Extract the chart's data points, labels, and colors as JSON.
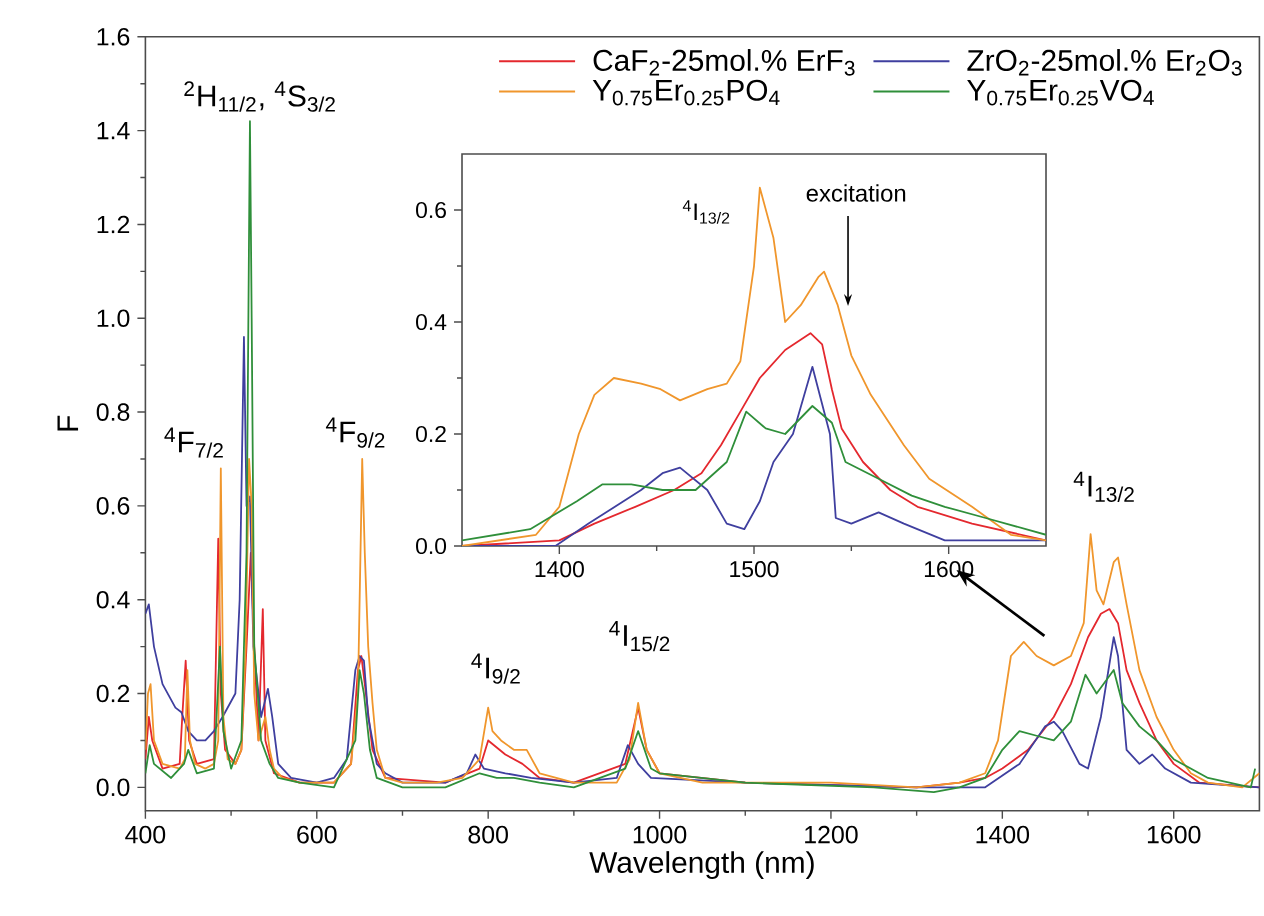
{
  "chart_data": [
    {
      "type": "line",
      "xlabel": "Wavelength (nm)",
      "ylabel": "F",
      "xlim": [
        400,
        1700
      ],
      "ylim": [
        -0.05,
        1.6
      ],
      "xticks": [
        400,
        600,
        800,
        1000,
        1200,
        1400,
        1600
      ],
      "yticks": [
        {
          "value": 0,
          "label": "0.0"
        },
        {
          "value": 0.2,
          "label": "0.2"
        },
        {
          "value": 0.4,
          "label": "0.4"
        },
        {
          "value": 0.6,
          "label": "0.6"
        },
        {
          "value": 0.8,
          "label": "0.8"
        },
        {
          "value": 1.0,
          "label": "1.0"
        },
        {
          "value": 1.2,
          "label": "1.2"
        },
        {
          "value": 1.4,
          "label": "1.4"
        },
        {
          "value": 1.6,
          "label": "1.6"
        }
      ],
      "legend": "top right",
      "annotations": [
        "$^{2}$H$_{11/2}$, $^{4}$S$_{3/2}$",
        "$^{4}$F$_{7/2}$",
        "$^{4}$F$_{9/2}$",
        "$^{4}$I$_{9/2}$",
        "$^{4}$I$_{15/2}$",
        "$^{4}$I$_{13/2}$"
      ],
      "series": [
        {
          "name": "CaF$_{2}$-25mol.% ErF$_{3}$",
          "color": "#e4282e",
          "x": [
            400,
            404,
            408,
            420,
            440,
            443,
            447,
            451,
            460,
            480,
            485,
            488,
            493,
            505,
            512,
            518,
            523,
            527,
            532,
            537,
            540,
            550,
            580,
            620,
            640,
            648,
            652,
            656,
            665,
            680,
            750,
            790,
            800,
            820,
            840,
            860,
            900,
            960,
            975,
            985,
            1000,
            1100,
            1300,
            1350,
            1380,
            1400,
            1430,
            1460,
            1480,
            1500,
            1515,
            1525,
            1535,
            1545,
            1560,
            1580,
            1600,
            1630,
            1700
          ],
          "values": [
            0.06,
            0.15,
            0.1,
            0.04,
            0.05,
            0.15,
            0.27,
            0.1,
            0.05,
            0.06,
            0.53,
            0.2,
            0.08,
            0.05,
            0.08,
            0.3,
            0.5,
            0.3,
            0.1,
            0.38,
            0.1,
            0.03,
            0.01,
            0.01,
            0.05,
            0.25,
            0.28,
            0.22,
            0.08,
            0.02,
            0.01,
            0.04,
            0.1,
            0.07,
            0.05,
            0.02,
            0.01,
            0.05,
            0.17,
            0.08,
            0.03,
            0.01,
            0.0,
            0.01,
            0.02,
            0.04,
            0.08,
            0.15,
            0.22,
            0.32,
            0.37,
            0.38,
            0.35,
            0.25,
            0.18,
            0.1,
            0.05,
            0.01,
            0.0
          ]
        },
        {
          "name": "ZrO$_{2}$-25mol.% Er$_{2}$O$_{3}$",
          "color": "#3f3f9f",
          "x": [
            400,
            404,
            410,
            420,
            435,
            442,
            450,
            460,
            470,
            480,
            490,
            505,
            510,
            515,
            518,
            522,
            526,
            535,
            543,
            548,
            555,
            570,
            600,
            620,
            635,
            645,
            650,
            655,
            660,
            670,
            680,
            700,
            750,
            775,
            785,
            795,
            820,
            850,
            900,
            950,
            963,
            975,
            990,
            1100,
            1300,
            1380,
            1420,
            1450,
            1460,
            1470,
            1490,
            1500,
            1515,
            1530,
            1535,
            1545,
            1560,
            1575,
            1590,
            1620,
            1700
          ],
          "values": [
            0.37,
            0.39,
            0.3,
            0.22,
            0.17,
            0.16,
            0.12,
            0.1,
            0.1,
            0.12,
            0.15,
            0.2,
            0.4,
            0.96,
            0.6,
            0.62,
            0.3,
            0.15,
            0.21,
            0.15,
            0.05,
            0.02,
            0.01,
            0.02,
            0.06,
            0.25,
            0.28,
            0.27,
            0.15,
            0.05,
            0.03,
            0.01,
            0.01,
            0.03,
            0.07,
            0.04,
            0.03,
            0.02,
            0.01,
            0.02,
            0.09,
            0.05,
            0.02,
            0.01,
            0.0,
            0.0,
            0.05,
            0.13,
            0.14,
            0.12,
            0.05,
            0.04,
            0.15,
            0.32,
            0.28,
            0.08,
            0.05,
            0.07,
            0.04,
            0.01,
            0.0
          ]
        },
        {
          "name": "Y$_{0.75}$Er$_{0.25}$PO$_{4}$",
          "color": "#f0962c",
          "x": [
            400,
            403,
            406,
            410,
            420,
            440,
            446,
            449,
            452,
            458,
            470,
            480,
            485,
            488,
            491,
            496,
            505,
            512,
            517,
            521,
            524,
            527,
            532,
            540,
            545,
            550,
            560,
            580,
            620,
            640,
            648,
            653,
            656,
            660,
            665,
            670,
            680,
            700,
            740,
            770,
            790,
            800,
            805,
            815,
            830,
            845,
            860,
            900,
            950,
            965,
            975,
            985,
            1000,
            1050,
            1200,
            1300,
            1350,
            1380,
            1395,
            1410,
            1425,
            1440,
            1460,
            1480,
            1495,
            1503,
            1510,
            1518,
            1530,
            1535,
            1545,
            1560,
            1580,
            1600,
            1620,
            1640,
            1680,
            1700
          ],
          "values": [
            0.08,
            0.2,
            0.22,
            0.1,
            0.05,
            0.04,
            0.06,
            0.25,
            0.1,
            0.05,
            0.04,
            0.05,
            0.1,
            0.68,
            0.15,
            0.06,
            0.05,
            0.08,
            0.3,
            0.7,
            0.6,
            0.2,
            0.1,
            0.15,
            0.08,
            0.04,
            0.02,
            0.01,
            0.01,
            0.05,
            0.2,
            0.7,
            0.5,
            0.3,
            0.18,
            0.08,
            0.02,
            0.01,
            0.01,
            0.02,
            0.06,
            0.17,
            0.12,
            0.1,
            0.08,
            0.08,
            0.03,
            0.01,
            0.01,
            0.06,
            0.18,
            0.08,
            0.03,
            0.01,
            0.01,
            0.0,
            0.01,
            0.03,
            0.1,
            0.28,
            0.31,
            0.28,
            0.26,
            0.28,
            0.35,
            0.54,
            0.42,
            0.39,
            0.48,
            0.49,
            0.39,
            0.25,
            0.15,
            0.08,
            0.03,
            0.01,
            0.0,
            0.03
          ]
        },
        {
          "name": "Y$_{0.75}$Er$_{0.25}$VO$_{4}$",
          "color": "#2f8f3a",
          "x": [
            400,
            405,
            410,
            430,
            445,
            450,
            460,
            480,
            487,
            491,
            500,
            512,
            518,
            522,
            524,
            527,
            535,
            545,
            555,
            580,
            620,
            645,
            650,
            655,
            662,
            670,
            700,
            750,
            790,
            810,
            830,
            860,
            900,
            960,
            975,
            990,
            1000,
            1100,
            1250,
            1320,
            1350,
            1380,
            1400,
            1420,
            1440,
            1460,
            1480,
            1497,
            1510,
            1530,
            1540,
            1560,
            1580,
            1600,
            1640,
            1690,
            1695
          ],
          "values": [
            0.03,
            0.09,
            0.05,
            0.02,
            0.05,
            0.08,
            0.03,
            0.04,
            0.3,
            0.12,
            0.04,
            0.1,
            0.5,
            1.42,
            1.0,
            0.3,
            0.1,
            0.05,
            0.02,
            0.01,
            0.0,
            0.1,
            0.25,
            0.2,
            0.08,
            0.02,
            0.0,
            0.0,
            0.03,
            0.02,
            0.02,
            0.01,
            0.0,
            0.04,
            0.12,
            0.04,
            0.03,
            0.01,
            0.0,
            -0.01,
            0.0,
            0.02,
            0.08,
            0.12,
            0.11,
            0.1,
            0.14,
            0.24,
            0.2,
            0.25,
            0.18,
            0.13,
            0.1,
            0.06,
            0.02,
            0.0,
            0.04
          ]
        }
      ]
    },
    {
      "type": "line",
      "xlim": [
        1350,
        1650
      ],
      "ylim": [
        0,
        0.7
      ],
      "xticks": [
        1400,
        1500,
        1600
      ],
      "yticks": [
        {
          "value": 0,
          "label": "0.0"
        },
        {
          "value": 0.2,
          "label": "0.2"
        },
        {
          "value": 0.4,
          "label": "0.4"
        },
        {
          "value": 0.6,
          "label": "0.6"
        }
      ],
      "annotations": [
        "$^{4}$I$_{13/2}$",
        "excitation"
      ],
      "series": [
        {
          "color": "#e4282e",
          "x": [
            1350,
            1400,
            1418,
            1439,
            1459,
            1473,
            1483,
            1493,
            1503,
            1516,
            1529,
            1535,
            1540,
            1545,
            1556,
            1570,
            1584,
            1612,
            1650
          ],
          "values": [
            0.0,
            0.01,
            0.04,
            0.07,
            0.1,
            0.13,
            0.18,
            0.24,
            0.3,
            0.35,
            0.38,
            0.36,
            0.28,
            0.21,
            0.15,
            0.1,
            0.07,
            0.04,
            0.01
          ]
        },
        {
          "color": "#3f3f9f",
          "x": [
            1350,
            1398,
            1415,
            1442,
            1453,
            1462,
            1476,
            1486,
            1495,
            1503,
            1510,
            1520,
            1530,
            1539,
            1542,
            1550,
            1564,
            1577,
            1598,
            1650
          ],
          "values": [
            0.0,
            0.0,
            0.04,
            0.1,
            0.13,
            0.14,
            0.1,
            0.04,
            0.03,
            0.08,
            0.15,
            0.2,
            0.32,
            0.2,
            0.05,
            0.04,
            0.06,
            0.04,
            0.01,
            0.01
          ]
        },
        {
          "color": "#f0962c",
          "x": [
            1350,
            1388,
            1400,
            1410,
            1418,
            1428,
            1442,
            1452,
            1462,
            1476,
            1486,
            1493,
            1500,
            1503,
            1510,
            1516,
            1524,
            1533,
            1536,
            1543,
            1550,
            1560,
            1577,
            1590,
            1612,
            1632,
            1650
          ],
          "values": [
            0.0,
            0.02,
            0.07,
            0.2,
            0.27,
            0.3,
            0.29,
            0.28,
            0.26,
            0.28,
            0.29,
            0.33,
            0.5,
            0.64,
            0.55,
            0.4,
            0.43,
            0.48,
            0.49,
            0.43,
            0.34,
            0.27,
            0.18,
            0.12,
            0.07,
            0.02,
            0.01
          ]
        },
        {
          "color": "#2f8f3a",
          "x": [
            1350,
            1385,
            1409,
            1422,
            1437,
            1453,
            1470,
            1486,
            1496,
            1506,
            1516,
            1530,
            1540,
            1547,
            1564,
            1581,
            1598,
            1619,
            1650
          ],
          "values": [
            0.01,
            0.03,
            0.08,
            0.11,
            0.11,
            0.1,
            0.1,
            0.15,
            0.24,
            0.21,
            0.2,
            0.25,
            0.22,
            0.15,
            0.12,
            0.09,
            0.07,
            0.05,
            0.02
          ]
        }
      ]
    }
  ]
}
